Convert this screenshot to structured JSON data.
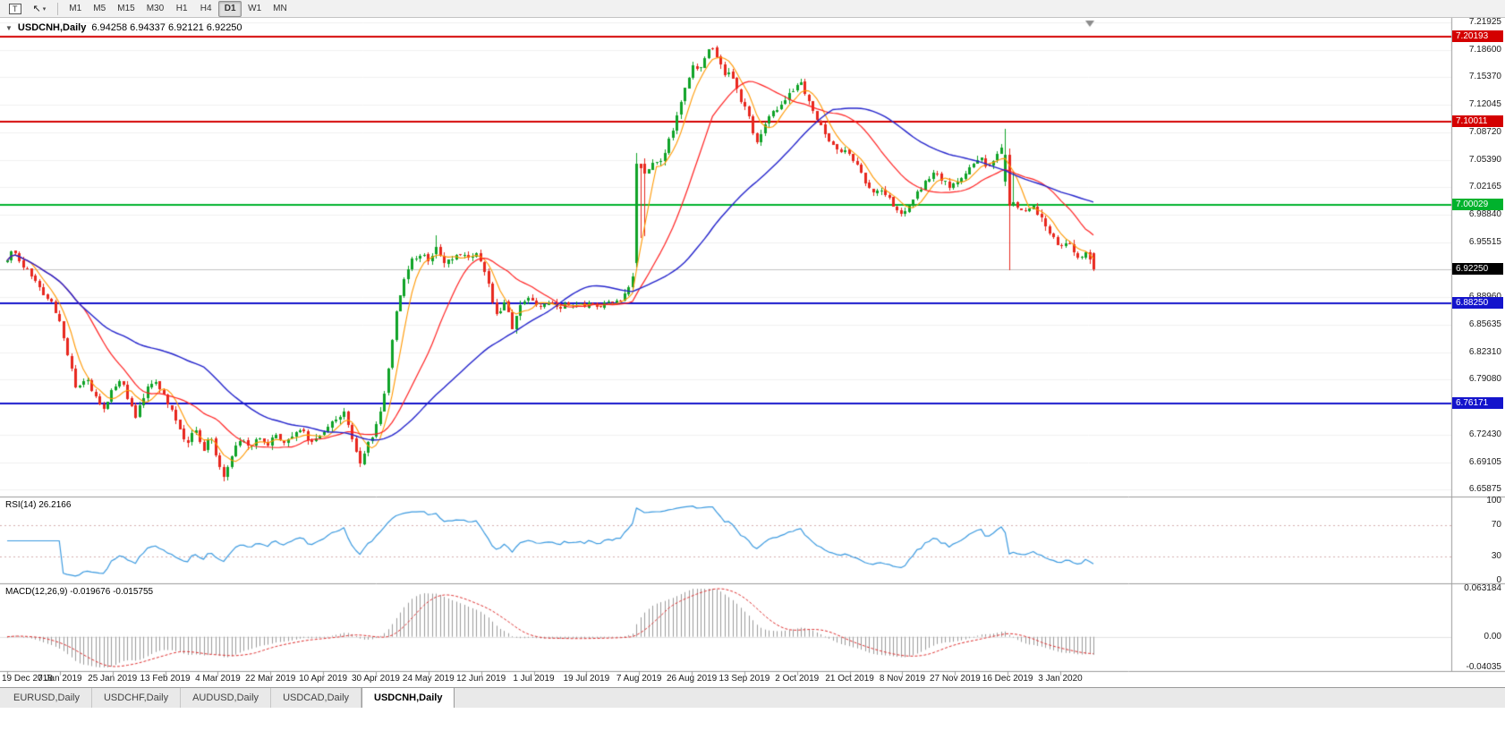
{
  "toolbar": {
    "tools": [
      {
        "name": "text-tool",
        "glyph": "T"
      },
      {
        "name": "cursor-tool",
        "glyph": "↖",
        "caret": "▾"
      }
    ],
    "timeframes": [
      {
        "label": "M1",
        "active": false
      },
      {
        "label": "M5",
        "active": false
      },
      {
        "label": "M15",
        "active": false
      },
      {
        "label": "M30",
        "active": false
      },
      {
        "label": "H1",
        "active": false
      },
      {
        "label": "H4",
        "active": false
      },
      {
        "label": "D1",
        "active": true
      },
      {
        "label": "W1",
        "active": false
      },
      {
        "label": "MN",
        "active": false
      }
    ]
  },
  "chart": {
    "expander_glyph": "▼",
    "title": "USDCNH,Daily",
    "ohlc_text": "6.94258 6.94337 6.92121 6.92250"
  },
  "rsi": {
    "label": "RSI(14) 26.2166",
    "period": 14,
    "current": 26.2166,
    "axis": [
      100,
      70,
      30,
      0
    ],
    "dashed_levels": [
      70,
      30
    ],
    "color": "#3b9ae0"
  },
  "macd": {
    "label": "MACD(12,26,9) -0.019676 -0.015755",
    "main_value": -0.019676,
    "signal_value": -0.015755,
    "axis": [
      {
        "label": "0.063184",
        "value": 0.063184
      },
      {
        "label": "0.00",
        "value": 0
      },
      {
        "label": "-0.04035",
        "value": -0.04035
      }
    ],
    "bar_color": "#9c9c9c",
    "signal_color": "#e03131"
  },
  "tabs": [
    {
      "label": "EURUSD,Daily",
      "active": false
    },
    {
      "label": "USDCHF,Daily",
      "active": false
    },
    {
      "label": "AUDUSD,Daily",
      "active": false
    },
    {
      "label": "USDCAD,Daily",
      "active": false
    },
    {
      "label": "USDCNH,Daily",
      "active": true
    }
  ],
  "chart_data": {
    "type": "candlestick",
    "symbol": "USDCNH",
    "period": "Daily",
    "candle_count": 272,
    "up_color": "#0fa327",
    "down_color": "#e8271e",
    "grid_color": "#f1f1f1",
    "current_price": 6.9225,
    "current_price_label": "6.92250",
    "current_price_badge_bg": "#000000",
    "current_line_color": "#c4c4c4",
    "last_candle": {
      "open": 6.94258,
      "high": 6.94337,
      "low": 6.92121,
      "close": 6.9225
    },
    "y_axis": {
      "max": 7.2245,
      "min": 6.6505,
      "ticks": [
        "7.21925",
        "7.18600",
        "7.15370",
        "7.12045",
        "7.08720",
        "7.05390",
        "7.02165",
        "6.98840",
        "6.95515",
        "6.88960",
        "6.85635",
        "6.82310",
        "6.79080",
        "6.72430",
        "6.69105",
        "6.65875"
      ]
    },
    "x_labels": [
      "19 Dec 2018",
      "7 Jan 2019",
      "25 Jan 2019",
      "13 Feb 2019",
      "4 Mar 2019",
      "22 Mar 2019",
      "10 Apr 2019",
      "30 Apr 2019",
      "24 May 2019",
      "12 Jun 2019",
      "1 Jul 2019",
      "19 Jul 2019",
      "7 Aug 2019",
      "26 Aug 2019",
      "13 Sep 2019",
      "2 Oct 2019",
      "21 Oct 2019",
      "8 Nov 2019",
      "27 Nov 2019",
      "16 Dec 2019",
      "3 Jan 2020"
    ],
    "levels": [
      {
        "label": "7.20193",
        "value": 7.20193,
        "color": "#d40000"
      },
      {
        "label": "7.10011",
        "value": 7.10011,
        "color": "#d40000"
      },
      {
        "label": "7.00029",
        "value": 7.00029,
        "color": "#00b22d"
      },
      {
        "label": "6.88250",
        "value": 6.8825,
        "color": "#1414cc"
      },
      {
        "label": "6.76171",
        "value": 6.76171,
        "color": "#1414cc"
      }
    ],
    "moving_averages": [
      {
        "name": "fast",
        "period": 6,
        "color": "#ff9800"
      },
      {
        "name": "medium",
        "period": 20,
        "color": "#ff2222"
      },
      {
        "name": "slow",
        "period": 50,
        "color": "#2424cc"
      }
    ],
    "macd_params": {
      "fast": 12,
      "slow": 26,
      "signal": 9
    },
    "price_anchors": [
      [
        0.0,
        6.932
      ],
      [
        0.006,
        6.947
      ],
      [
        0.014,
        6.928
      ],
      [
        0.022,
        6.915
      ],
      [
        0.03,
        6.9
      ],
      [
        0.04,
        6.885
      ],
      [
        0.048,
        6.862
      ],
      [
        0.056,
        6.815
      ],
      [
        0.064,
        6.778
      ],
      [
        0.072,
        6.792
      ],
      [
        0.08,
        6.774
      ],
      [
        0.088,
        6.756
      ],
      [
        0.097,
        6.78
      ],
      [
        0.104,
        6.793
      ],
      [
        0.111,
        6.77
      ],
      [
        0.118,
        6.744
      ],
      [
        0.126,
        6.772
      ],
      [
        0.134,
        6.79
      ],
      [
        0.141,
        6.777
      ],
      [
        0.148,
        6.76
      ],
      [
        0.156,
        6.742
      ],
      [
        0.164,
        6.712
      ],
      [
        0.172,
        6.733
      ],
      [
        0.18,
        6.706
      ],
      [
        0.187,
        6.722
      ],
      [
        0.194,
        6.694
      ],
      [
        0.2,
        6.673
      ],
      [
        0.208,
        6.704
      ],
      [
        0.215,
        6.719
      ],
      [
        0.223,
        6.707
      ],
      [
        0.231,
        6.72
      ],
      [
        0.239,
        6.711
      ],
      [
        0.247,
        6.727
      ],
      [
        0.255,
        6.713
      ],
      [
        0.263,
        6.723
      ],
      [
        0.271,
        6.73
      ],
      [
        0.279,
        6.714
      ],
      [
        0.287,
        6.723
      ],
      [
        0.295,
        6.732
      ],
      [
        0.303,
        6.746
      ],
      [
        0.31,
        6.753
      ],
      [
        0.317,
        6.719
      ],
      [
        0.324,
        6.689
      ],
      [
        0.331,
        6.711
      ],
      [
        0.339,
        6.734
      ],
      [
        0.346,
        6.763
      ],
      [
        0.352,
        6.82
      ],
      [
        0.358,
        6.874
      ],
      [
        0.365,
        6.913
      ],
      [
        0.372,
        6.933
      ],
      [
        0.38,
        6.941
      ],
      [
        0.388,
        6.935
      ],
      [
        0.395,
        6.947
      ],
      [
        0.402,
        6.929
      ],
      [
        0.41,
        6.937
      ],
      [
        0.418,
        6.943
      ],
      [
        0.425,
        6.937
      ],
      [
        0.431,
        6.942
      ],
      [
        0.437,
        6.931
      ],
      [
        0.444,
        6.899
      ],
      [
        0.451,
        6.863
      ],
      [
        0.458,
        6.885
      ],
      [
        0.465,
        6.853
      ],
      [
        0.472,
        6.879
      ],
      [
        0.48,
        6.889
      ],
      [
        0.489,
        6.88
      ],
      [
        0.499,
        6.884
      ],
      [
        0.509,
        6.878
      ],
      [
        0.519,
        6.883
      ],
      [
        0.529,
        6.879
      ],
      [
        0.539,
        6.882
      ],
      [
        0.549,
        6.88
      ],
      [
        0.559,
        6.884
      ],
      [
        0.567,
        6.89
      ],
      [
        0.574,
        6.903
      ],
      [
        0.578,
        6.931
      ],
      [
        0.583,
        7.047
      ],
      [
        0.589,
        7.04
      ],
      [
        0.595,
        7.056
      ],
      [
        0.601,
        7.05
      ],
      [
        0.607,
        7.07
      ],
      [
        0.613,
        7.094
      ],
      [
        0.619,
        7.12
      ],
      [
        0.625,
        7.148
      ],
      [
        0.631,
        7.167
      ],
      [
        0.637,
        7.159
      ],
      [
        0.643,
        7.178
      ],
      [
        0.648,
        7.191
      ],
      [
        0.654,
        7.179
      ],
      [
        0.66,
        7.153
      ],
      [
        0.666,
        7.163
      ],
      [
        0.672,
        7.136
      ],
      [
        0.678,
        7.119
      ],
      [
        0.684,
        7.099
      ],
      [
        0.69,
        7.073
      ],
      [
        0.696,
        7.097
      ],
      [
        0.703,
        7.109
      ],
      [
        0.71,
        7.119
      ],
      [
        0.717,
        7.129
      ],
      [
        0.724,
        7.141
      ],
      [
        0.73,
        7.149
      ],
      [
        0.737,
        7.125
      ],
      [
        0.744,
        7.103
      ],
      [
        0.751,
        7.089
      ],
      [
        0.758,
        7.073
      ],
      [
        0.765,
        7.063
      ],
      [
        0.772,
        7.069
      ],
      [
        0.779,
        7.055
      ],
      [
        0.786,
        7.04
      ],
      [
        0.792,
        7.022
      ],
      [
        0.798,
        7.012
      ],
      [
        0.804,
        7.018
      ],
      [
        0.811,
        7.008
      ],
      [
        0.818,
        6.998
      ],
      [
        0.825,
        6.986
      ],
      [
        0.832,
        7.004
      ],
      [
        0.839,
        7.018
      ],
      [
        0.846,
        7.028
      ],
      [
        0.853,
        7.04
      ],
      [
        0.86,
        7.03
      ],
      [
        0.867,
        7.022
      ],
      [
        0.874,
        7.03
      ],
      [
        0.881,
        7.038
      ],
      [
        0.888,
        7.048
      ],
      [
        0.895,
        7.058
      ],
      [
        0.902,
        7.046
      ],
      [
        0.909,
        7.056
      ],
      [
        0.915,
        7.066
      ],
      [
        0.92,
        7.056
      ],
      [
        0.926,
        7.0
      ],
      [
        0.932,
        6.997
      ],
      [
        0.938,
        6.989
      ],
      [
        0.944,
        6.999
      ],
      [
        0.95,
        6.987
      ],
      [
        0.956,
        6.973
      ],
      [
        0.962,
        6.961
      ],
      [
        0.969,
        6.949
      ],
      [
        0.975,
        6.959
      ],
      [
        0.981,
        6.945
      ],
      [
        0.987,
        6.935
      ],
      [
        0.993,
        6.943
      ],
      [
        1.0,
        6.9235
      ]
    ],
    "special_candles": [
      {
        "frac": 0.395,
        "open": 6.941,
        "high": 6.964,
        "low": 6.936,
        "close": 6.95
      },
      {
        "frac": 0.58,
        "open": 6.93,
        "high": 7.062,
        "low": 6.925,
        "close": 7.05
      },
      {
        "frac": 0.587,
        "open": 7.05,
        "high": 7.056,
        "low": 6.963,
        "close": 7.038
      },
      {
        "frac": 0.917,
        "open": 7.028,
        "high": 7.091,
        "low": 7.023,
        "close": 7.06
      },
      {
        "frac": 0.9225,
        "open": 7.06,
        "high": 7.068,
        "low": 6.9215,
        "close": 6.999
      },
      {
        "frac": 1.0,
        "open": 6.94258,
        "high": 6.94337,
        "low": 6.92121,
        "close": 6.9225
      }
    ]
  }
}
